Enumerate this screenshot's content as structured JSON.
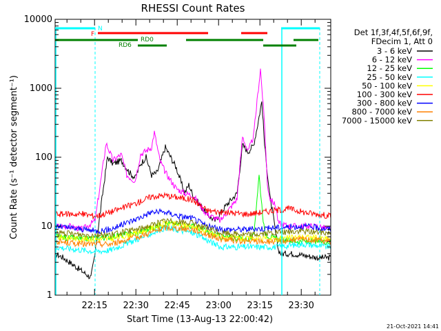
{
  "chart_data": {
    "type": "line",
    "title": "RHESSI Count Rates",
    "xlabel": "Start Time (13-Aug-13 22:00:42)",
    "ylabel": "Count Rate (s⁻¹ detector segment⁻¹)",
    "y_scale": "log",
    "ylim": [
      1,
      10000
    ],
    "xlim_minutes": [
      0,
      100
    ],
    "x_tick_labels": [
      "22:15",
      "22:30",
      "22:45",
      "23:00",
      "23:15",
      "23:30"
    ],
    "y_tick_labels": [
      "1",
      "10",
      "100",
      "1000",
      "10000"
    ],
    "legend_header": [
      "Det 1f,3f,4f,5f,6f,9f,",
      "FDecim 1, Att 0"
    ],
    "legend_placement": "right",
    "footer_date": "21-Oct-2021 14:41",
    "flags": {
      "N_label": "N",
      "F_label": "F",
      "RD0_label": "RD0",
      "RD6_label": "RD6"
    },
    "series": [
      {
        "name": "3 - 6 keV",
        "color": "#000000",
        "time": [
          0,
          3,
          8,
          13,
          14.5,
          17,
          19,
          21,
          24,
          27,
          29,
          31,
          33,
          35,
          37,
          40,
          44,
          47,
          48.5,
          50,
          55,
          58,
          62,
          66,
          68,
          70,
          72,
          73.5,
          75,
          76,
          77,
          78,
          79,
          80,
          81,
          82,
          86,
          90,
          95,
          100
        ],
        "values": [
          4,
          3.5,
          2.5,
          1.8,
          4,
          25,
          100,
          80,
          90,
          60,
          50,
          80,
          100,
          55,
          60,
          140,
          70,
          30,
          40,
          28,
          15,
          12,
          20,
          30,
          150,
          120,
          150,
          300,
          650,
          150,
          60,
          25,
          15,
          8,
          4.5,
          4,
          4,
          3.8,
          3.5,
          3.5
        ]
      },
      {
        "name": "6 - 12 keV",
        "color": "#ff00ff",
        "time": [
          0,
          5,
          10,
          14.5,
          17,
          18.5,
          21,
          24,
          26,
          29,
          31,
          35,
          36,
          38,
          40,
          44,
          47,
          50,
          55,
          60,
          66,
          68,
          70,
          72,
          73.5,
          74.5,
          76,
          77,
          78,
          80,
          81,
          85,
          90,
          95,
          100
        ],
        "values": [
          10,
          10,
          9,
          12,
          60,
          160,
          90,
          110,
          55,
          45,
          110,
          140,
          230,
          90,
          60,
          35,
          30,
          28,
          15,
          12,
          25,
          200,
          120,
          200,
          800,
          1900,
          300,
          40,
          25,
          20,
          11,
          10,
          10,
          10,
          9
        ]
      },
      {
        "name": "12 - 25 keV",
        "color": "#00ff00",
        "time": [
          0,
          10,
          20,
          30,
          40,
          50,
          60,
          70,
          72,
          73,
          74,
          75,
          76,
          78,
          80,
          90,
          100
        ],
        "values": [
          7,
          6.5,
          7,
          8,
          11,
          10,
          7,
          6.5,
          7,
          20,
          55,
          20,
          8,
          7,
          6.5,
          6,
          6
        ]
      },
      {
        "name": "25 - 50 keV",
        "color": "#00ffff",
        "time": [
          0,
          10,
          15,
          20,
          30,
          40,
          50,
          60,
          70,
          80,
          90,
          100
        ],
        "values": [
          5,
          4.5,
          4.3,
          4.5,
          6.5,
          9.5,
          8,
          5,
          5,
          5,
          5.5,
          5
        ]
      },
      {
        "name": "50 - 100 keV",
        "color": "#ffff00",
        "time": [
          0,
          10,
          20,
          30,
          40,
          50,
          60,
          70,
          80,
          90,
          100
        ],
        "values": [
          7,
          6.5,
          6.5,
          8,
          11,
          10,
          7,
          6.5,
          6.5,
          7,
          6.5
        ]
      },
      {
        "name": "100 - 300 keV",
        "color": "#ff0000",
        "time": [
          0,
          10,
          15,
          20,
          30,
          35,
          40,
          45,
          50,
          55,
          60,
          70,
          80,
          85,
          90,
          100
        ],
        "values": [
          15,
          15,
          14,
          16,
          22,
          27,
          28,
          26,
          24,
          17,
          16,
          15,
          17,
          18,
          16,
          14
        ]
      },
      {
        "name": "300 - 800 keV",
        "color": "#0000ff",
        "time": [
          0,
          10,
          15,
          20,
          30,
          35,
          40,
          45,
          50,
          55,
          60,
          70,
          80,
          90,
          100
        ],
        "values": [
          10,
          9,
          8.5,
          9,
          13,
          16,
          16,
          14,
          13,
          10,
          9,
          9,
          9.5,
          10,
          9
        ]
      },
      {
        "name": "800 - 7000 keV",
        "color": "#ff8000",
        "time": [
          0,
          10,
          20,
          30,
          40,
          50,
          60,
          70,
          80,
          90,
          100
        ],
        "values": [
          6,
          5.5,
          5.5,
          7,
          9.5,
          9,
          6.5,
          6,
          6,
          6.5,
          6
        ]
      },
      {
        "name": "7000 - 15000 keV",
        "color": "#808000",
        "time": [
          0,
          10,
          20,
          30,
          40,
          50,
          60,
          70,
          80,
          90,
          100
        ],
        "values": [
          8,
          7.5,
          7.5,
          9,
          12,
          11,
          8,
          7.5,
          8,
          8.5,
          8
        ]
      }
    ],
    "grid": false
  }
}
